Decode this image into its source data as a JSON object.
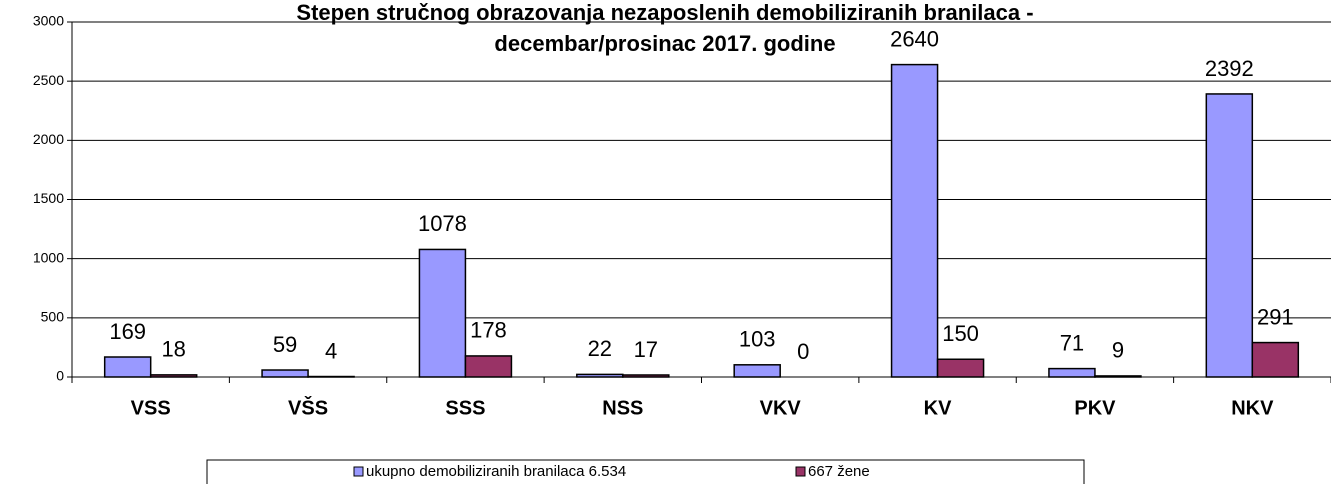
{
  "chart_data": {
    "type": "bar",
    "title": [
      "Stepen stručnog obrazovanja nezaposlenih demobiliziranih branilaca -",
      "decembar/prosinac 2017. godine"
    ],
    "categories": [
      "VSS",
      "VŠS",
      "SSS",
      "NSS",
      "VKV",
      "KV",
      "PKV",
      "NKV"
    ],
    "series": [
      {
        "name": "ukupno demobiliziranih branilaca 6.534",
        "color": "#9999ff",
        "values": [
          169,
          59,
          1078,
          22,
          103,
          2640,
          71,
          2392
        ]
      },
      {
        "name": "667 žene",
        "color": "#993366",
        "values": [
          18,
          4,
          178,
          17,
          0,
          150,
          9,
          291
        ]
      }
    ],
    "ylim": [
      0,
      3000
    ],
    "yticks": [
      0,
      500,
      1000,
      1500,
      2000,
      2500,
      3000
    ],
    "grid": true,
    "legend": "bottom"
  }
}
